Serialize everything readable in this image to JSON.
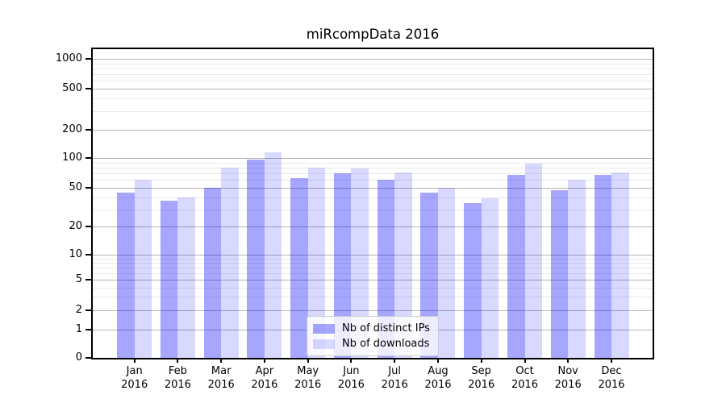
{
  "title": "miRcompData 2016",
  "legend": {
    "items": [
      {
        "label": "Nb of distinct IPs",
        "color": "rgba(0,0,255,0.35)"
      },
      {
        "label": "Nb of downloads",
        "color": "rgba(0,0,255,0.15)"
      }
    ],
    "position": "lower center"
  },
  "y_axis": {
    "tick_labels": [
      "0",
      "1",
      "2",
      "5",
      "10",
      "20",
      "50",
      "100",
      "200",
      "500",
      "1000"
    ]
  },
  "x_axis": {
    "tick_labels": [
      "Jan 2016",
      "Feb 2016",
      "Mar 2016",
      "Apr 2016",
      "May 2016",
      "Jun 2016",
      "Jul 2016",
      "Aug 2016",
      "Sep 2016",
      "Oct 2016",
      "Nov 2016",
      "Dec 2016"
    ]
  },
  "chart_data": {
    "type": "bar",
    "title": "miRcompData 2016",
    "categories": [
      "Jan 2016",
      "Feb 2016",
      "Mar 2016",
      "Apr 2016",
      "May 2016",
      "Jun 2016",
      "Jul 2016",
      "Aug 2016",
      "Sep 2016",
      "Oct 2016",
      "Nov 2016",
      "Dec 2016"
    ],
    "series": [
      {
        "name": "Nb of distinct IPs",
        "values": [
          44,
          37,
          50,
          97,
          62,
          70,
          60,
          44,
          35,
          68,
          47,
          67
        ],
        "color": "rgba(0,0,255,0.35)"
      },
      {
        "name": "Nb of downloads",
        "values": [
          60,
          40,
          80,
          115,
          80,
          78,
          72,
          50,
          39,
          88,
          60,
          71
        ],
        "color": "rgba(0,0,255,0.15)"
      }
    ],
    "yscale": "log-like (symlog/asinh)",
    "yticks": [
      0,
      1,
      2,
      5,
      10,
      20,
      50,
      100,
      200,
      500,
      1000
    ],
    "minor_gridlines": [
      3,
      4,
      6,
      7,
      8,
      9,
      30,
      40,
      60,
      70,
      80,
      90,
      300,
      400,
      600,
      700,
      800,
      900
    ],
    "ylim": [
      0,
      1300
    ],
    "grid": true,
    "legend_position": "lower center",
    "bar_colors": {
      "major_hex_on_white": "#aaaaff",
      "minor_hex_on_white": "#dbdbff"
    }
  }
}
